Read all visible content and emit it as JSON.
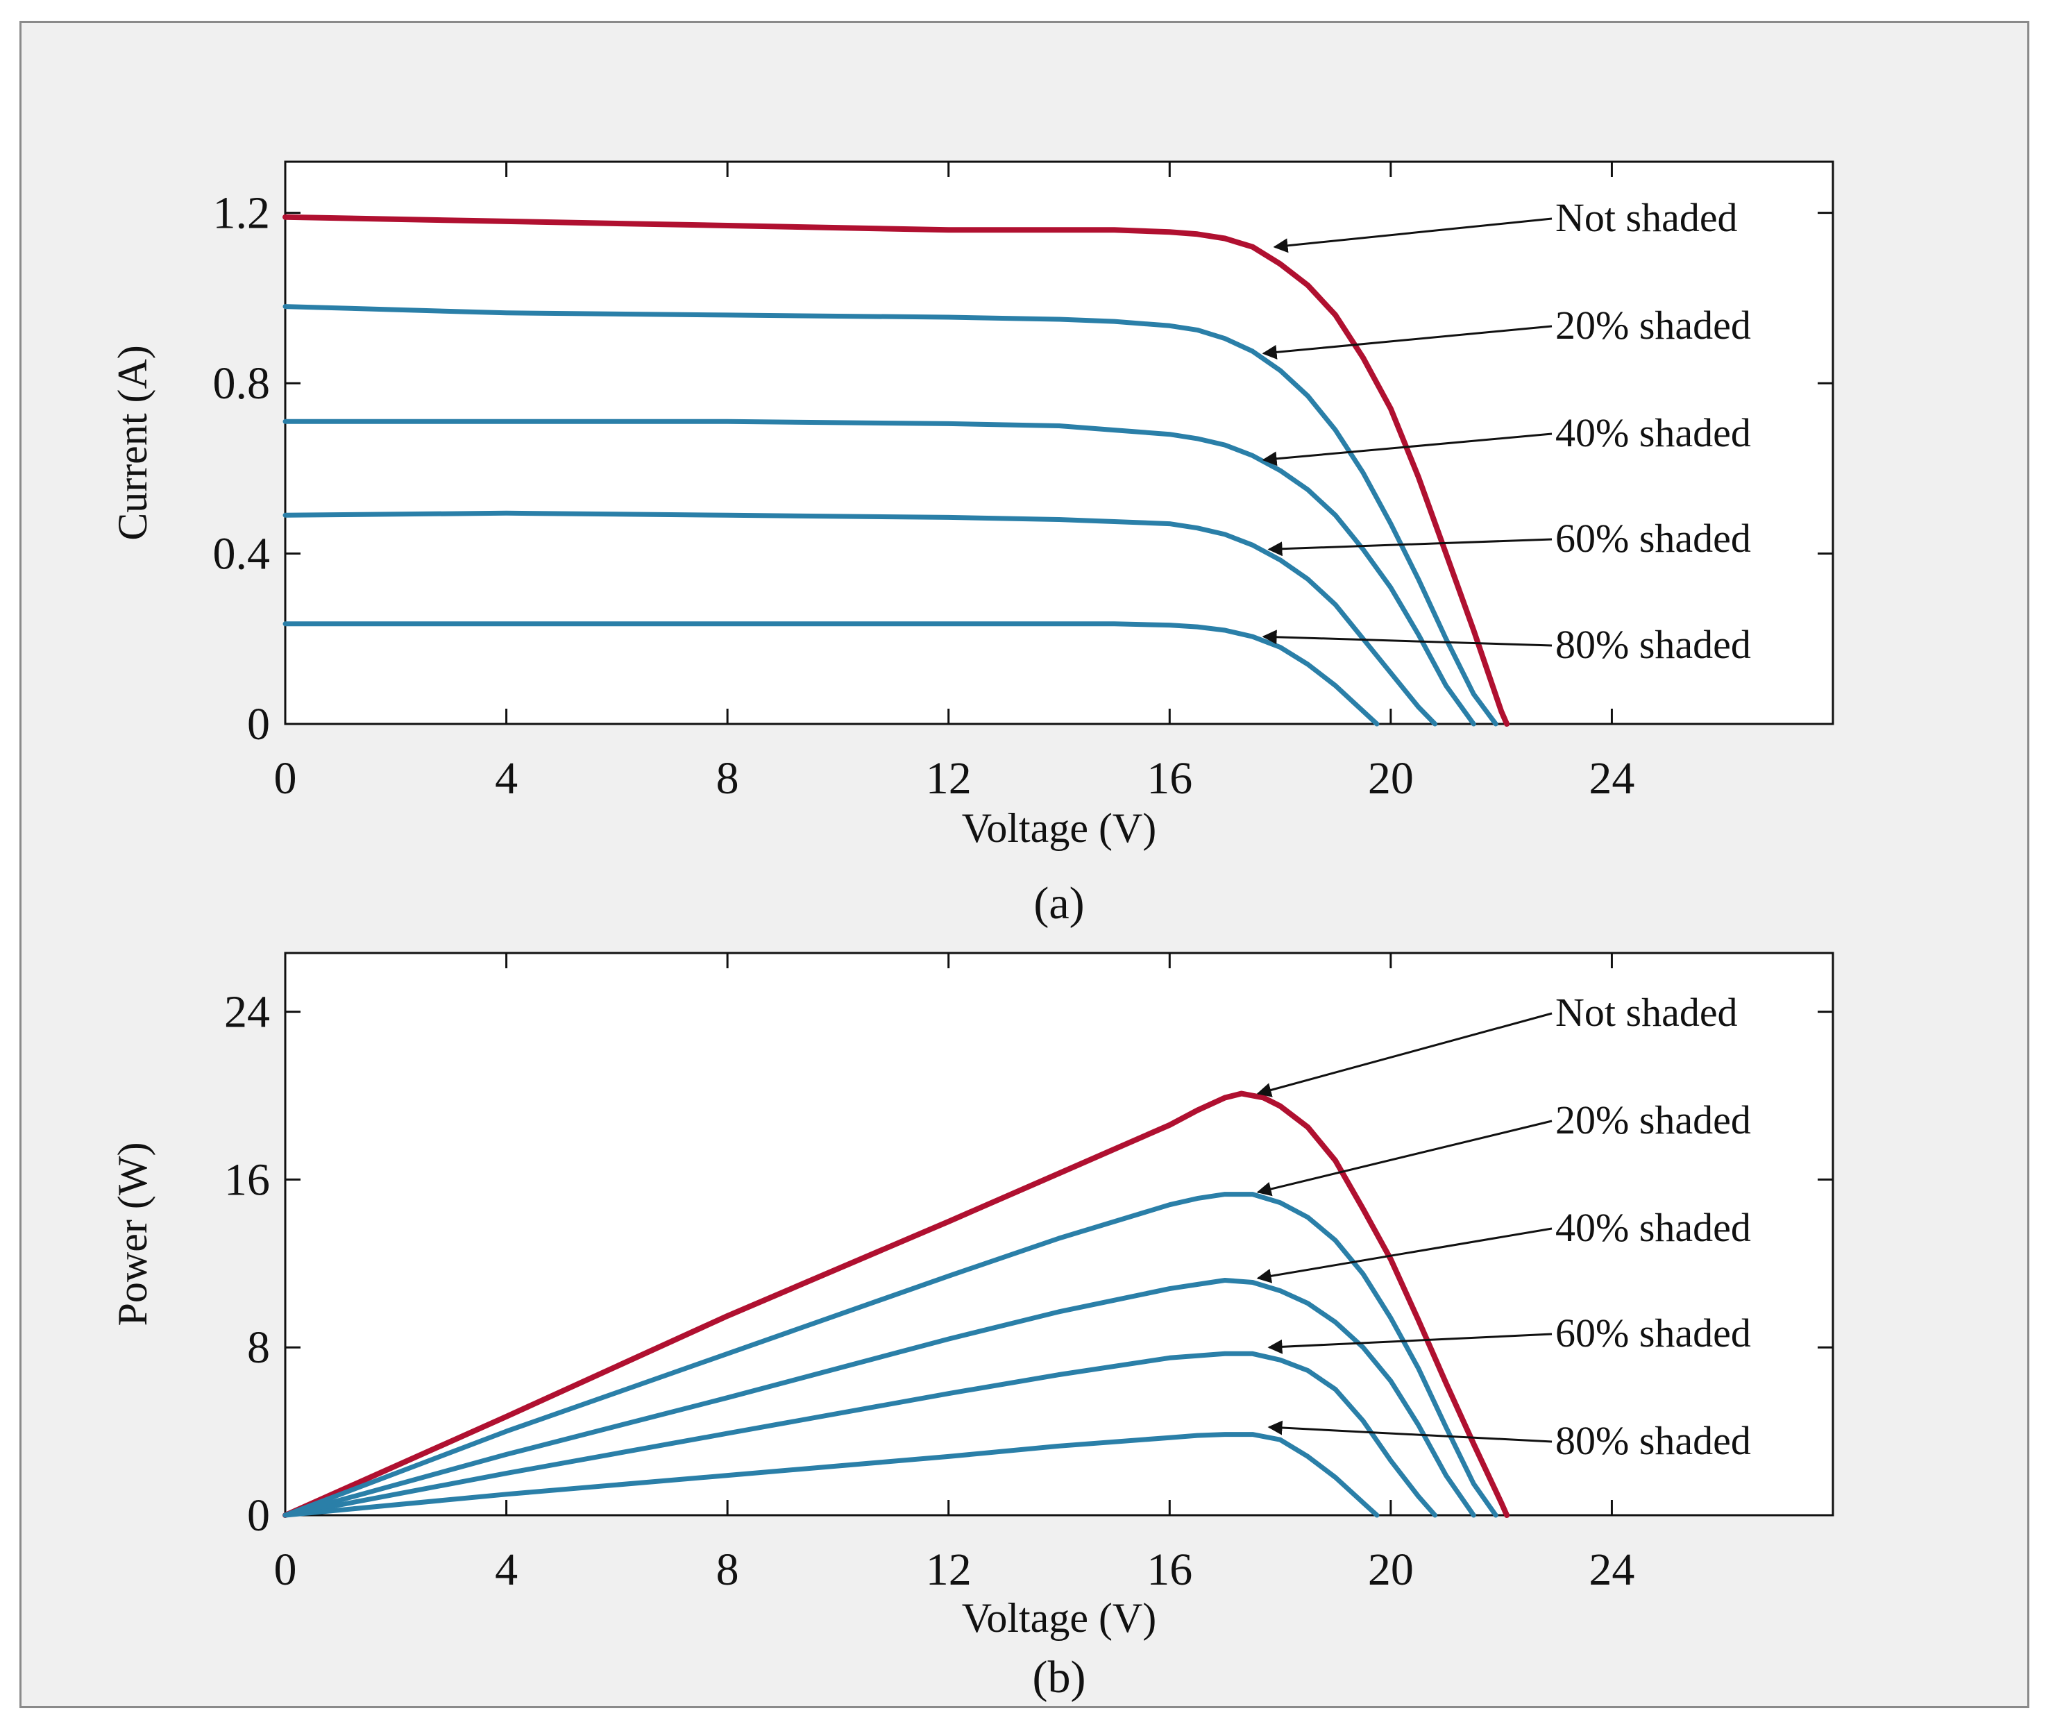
{
  "colors": {
    "not_shaded": "#b01030",
    "shaded": "#2a7fa8",
    "axis": "#111111",
    "arrow": "#111111",
    "figure_bg": "#f0f0f0",
    "plot_bg": "#ffffff"
  },
  "chart_data": [
    {
      "type": "line",
      "panel_label": "(a)",
      "title": "",
      "xlabel": "Voltage (V)",
      "ylabel": "Current (A)",
      "xlim": [
        0,
        28
      ],
      "ylim": [
        0,
        1.32
      ],
      "xticks": [
        0,
        4,
        8,
        12,
        16,
        20,
        24
      ],
      "xtick_labels": [
        "0",
        "4",
        "8",
        "12",
        "16",
        "20",
        "24"
      ],
      "yticks": [
        0,
        0.4,
        0.8,
        1.2
      ],
      "ytick_labels": [
        "0",
        "0.4",
        "0.8",
        "1.2"
      ],
      "series": [
        {
          "name": "Not shaded",
          "style": "not_shaded",
          "x": [
            0,
            4,
            8,
            12,
            14,
            15,
            16,
            16.5,
            17,
            17.5,
            18,
            18.5,
            19,
            19.5,
            20,
            20.5,
            21,
            21.5,
            22,
            22.1
          ],
          "y": [
            1.19,
            1.18,
            1.17,
            1.16,
            1.16,
            1.16,
            1.155,
            1.15,
            1.14,
            1.12,
            1.08,
            1.03,
            0.96,
            0.86,
            0.74,
            0.58,
            0.4,
            0.22,
            0.03,
            0.0
          ]
        },
        {
          "name": "20% shaded",
          "style": "shaded",
          "x": [
            0,
            4,
            8,
            12,
            14,
            15,
            16,
            16.5,
            17,
            17.5,
            18,
            18.5,
            19,
            19.5,
            20,
            20.5,
            21,
            21.5,
            21.9
          ],
          "y": [
            0.98,
            0.965,
            0.96,
            0.955,
            0.95,
            0.945,
            0.935,
            0.925,
            0.905,
            0.875,
            0.83,
            0.77,
            0.69,
            0.59,
            0.47,
            0.34,
            0.2,
            0.07,
            0.0
          ]
        },
        {
          "name": "40% shaded",
          "style": "shaded",
          "x": [
            0,
            4,
            8,
            12,
            14,
            15,
            16,
            16.5,
            17,
            17.5,
            18,
            18.5,
            19,
            19.5,
            20,
            20.5,
            21,
            21.5
          ],
          "y": [
            0.71,
            0.71,
            0.71,
            0.705,
            0.7,
            0.69,
            0.68,
            0.67,
            0.655,
            0.63,
            0.595,
            0.55,
            0.49,
            0.41,
            0.32,
            0.21,
            0.09,
            0.0
          ]
        },
        {
          "name": "60% shaded",
          "style": "shaded",
          "x": [
            0,
            4,
            8,
            12,
            14,
            15,
            16,
            16.5,
            17,
            17.5,
            18,
            18.5,
            19,
            19.5,
            20,
            20.5,
            20.8
          ],
          "y": [
            0.49,
            0.495,
            0.49,
            0.485,
            0.48,
            0.475,
            0.47,
            0.46,
            0.445,
            0.42,
            0.385,
            0.34,
            0.28,
            0.2,
            0.12,
            0.04,
            0.0
          ]
        },
        {
          "name": "80% shaded",
          "style": "shaded",
          "x": [
            0,
            4,
            8,
            12,
            14,
            15,
            16,
            16.5,
            17,
            17.5,
            18,
            18.5,
            19,
            19.5,
            19.75
          ],
          "y": [
            0.235,
            0.235,
            0.235,
            0.235,
            0.235,
            0.235,
            0.232,
            0.228,
            0.22,
            0.205,
            0.18,
            0.14,
            0.09,
            0.03,
            0.0
          ]
        }
      ],
      "annotations": [
        {
          "text": "Not shaded",
          "target_x": 17.9,
          "target_y": 1.12
        },
        {
          "text": "20% shaded",
          "target_x": 17.7,
          "target_y": 0.87
        },
        {
          "text": "40% shaded",
          "target_x": 17.7,
          "target_y": 0.62
        },
        {
          "text": "60% shaded",
          "target_x": 17.8,
          "target_y": 0.41
        },
        {
          "text": "80% shaded",
          "target_x": 17.7,
          "target_y": 0.205
        }
      ]
    },
    {
      "type": "line",
      "panel_label": "(b)",
      "title": "",
      "xlabel": "Voltage (V)",
      "ylabel": "Power (W)",
      "xlim": [
        0,
        28
      ],
      "ylim": [
        0,
        26.8
      ],
      "xticks": [
        0,
        4,
        8,
        12,
        16,
        20,
        24
      ],
      "xtick_labels": [
        "0",
        "4",
        "8",
        "12",
        "16",
        "20",
        "24"
      ],
      "yticks": [
        0,
        8,
        16,
        24
      ],
      "ytick_labels": [
        "0",
        "8",
        "16",
        "24"
      ],
      "series": [
        {
          "name": "Not shaded",
          "style": "not_shaded",
          "x": [
            0,
            4,
            8,
            12,
            14,
            16,
            16.5,
            17,
            17.3,
            17.7,
            18,
            18.5,
            19,
            19.5,
            20,
            20.5,
            21,
            21.5,
            22,
            22.1
          ],
          "y": [
            0,
            4.7,
            9.5,
            14.0,
            16.3,
            18.6,
            19.3,
            19.9,
            20.1,
            19.9,
            19.5,
            18.5,
            16.9,
            14.6,
            12.2,
            9.3,
            6.3,
            3.4,
            0.6,
            0.0
          ]
        },
        {
          "name": "20% shaded",
          "style": "shaded",
          "x": [
            0,
            4,
            8,
            12,
            14,
            16,
            16.5,
            17,
            17.5,
            18,
            18.5,
            19,
            19.5,
            20,
            20.5,
            21,
            21.5,
            21.9
          ],
          "y": [
            0,
            4.0,
            7.7,
            11.4,
            13.2,
            14.8,
            15.1,
            15.3,
            15.3,
            14.9,
            14.2,
            13.1,
            11.5,
            9.4,
            7.0,
            4.2,
            1.5,
            0.0
          ]
        },
        {
          "name": "40% shaded",
          "style": "shaded",
          "x": [
            0,
            4,
            8,
            12,
            14,
            16,
            16.5,
            17,
            17.5,
            18,
            18.5,
            19,
            19.5,
            20,
            20.5,
            21,
            21.5
          ],
          "y": [
            0,
            2.9,
            5.6,
            8.4,
            9.7,
            10.8,
            11.0,
            11.2,
            11.1,
            10.7,
            10.1,
            9.2,
            8.0,
            6.4,
            4.3,
            1.9,
            0.0
          ]
        },
        {
          "name": "60% shaded",
          "style": "shaded",
          "x": [
            0,
            4,
            8,
            12,
            14,
            16,
            16.5,
            17,
            17.5,
            18,
            18.5,
            19,
            19.5,
            20,
            20.5,
            20.8
          ],
          "y": [
            0,
            2.0,
            3.9,
            5.8,
            6.7,
            7.5,
            7.6,
            7.7,
            7.7,
            7.4,
            6.9,
            6.0,
            4.5,
            2.6,
            0.9,
            0.0
          ]
        },
        {
          "name": "80% shaded",
          "style": "shaded",
          "x": [
            0,
            4,
            8,
            12,
            14,
            16,
            16.5,
            17,
            17.5,
            18,
            18.5,
            19,
            19.5,
            19.75
          ],
          "y": [
            0,
            1.0,
            1.9,
            2.8,
            3.3,
            3.7,
            3.8,
            3.85,
            3.85,
            3.6,
            2.8,
            1.8,
            0.6,
            0.0
          ]
        }
      ],
      "annotations": [
        {
          "text": "Not shaded",
          "target_x": 17.6,
          "target_y": 20.1
        },
        {
          "text": "20% shaded",
          "target_x": 17.6,
          "target_y": 15.4
        },
        {
          "text": "40% shaded",
          "target_x": 17.6,
          "target_y": 11.3
        },
        {
          "text": "60% shaded",
          "target_x": 17.8,
          "target_y": 8.0
        },
        {
          "text": "80% shaded",
          "target_x": 17.8,
          "target_y": 4.2
        }
      ]
    }
  ]
}
